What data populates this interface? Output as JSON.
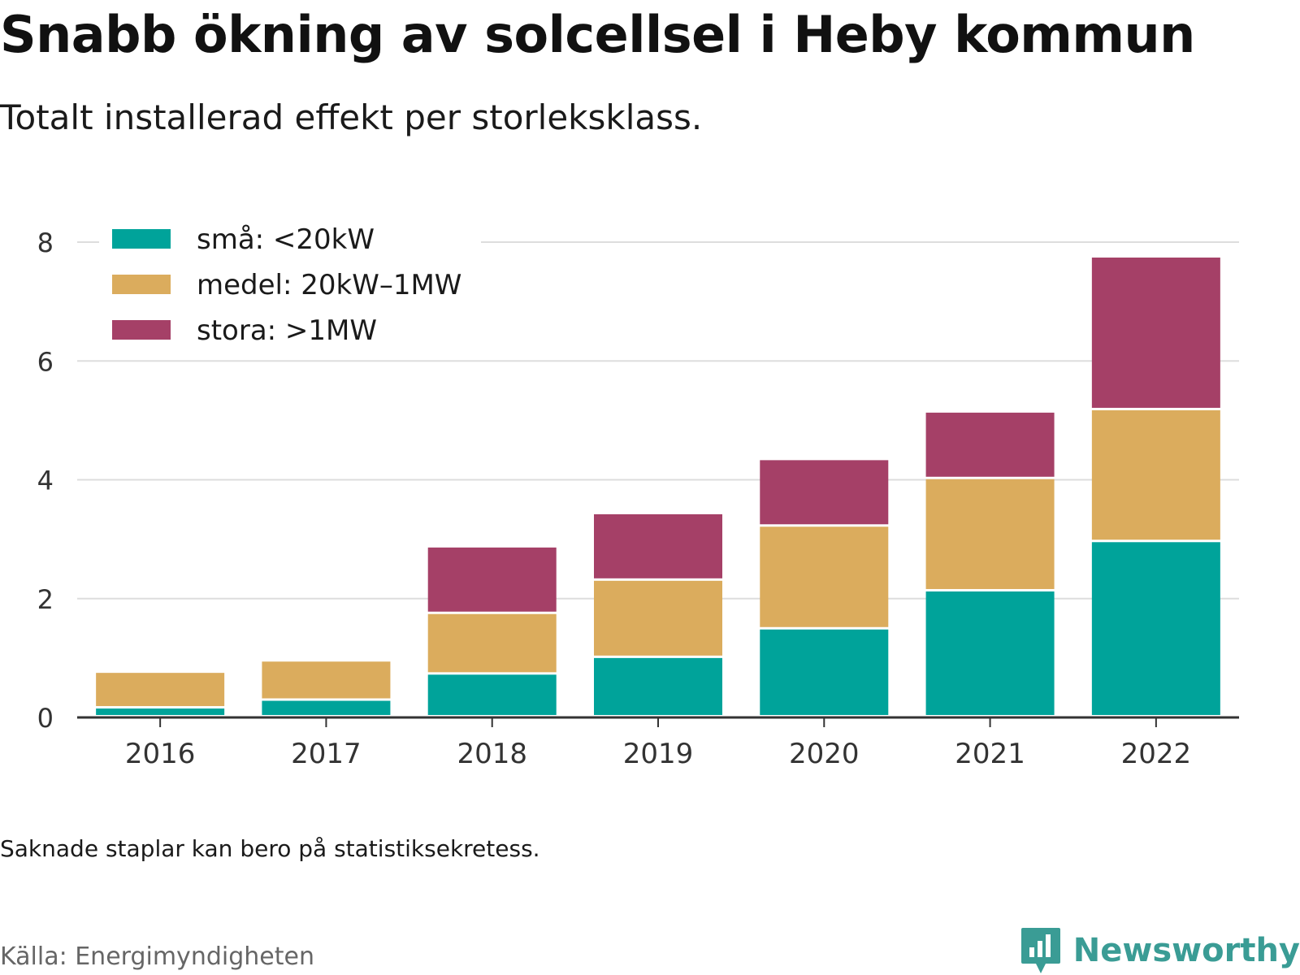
{
  "title": "Snabb ökning av solcellsel i Heby kommun",
  "subtitle": "Totalt installerad effekt per storleksklass.",
  "note": "Saknade staplar kan bero på statistiksekretess.",
  "source": "Källa: Energimyndigheten",
  "brand": {
    "name": "Newsworthy",
    "icon": "newsworthy-logo-icon",
    "color": "#3a9c95"
  },
  "chart_data": {
    "type": "bar",
    "stacked": true,
    "categories": [
      "2016",
      "2017",
      "2018",
      "2019",
      "2020",
      "2021",
      "2022"
    ],
    "series": [
      {
        "name": "små: <20kW",
        "color": "#00a39a",
        "values": [
          0.15,
          0.28,
          0.72,
          1.0,
          1.48,
          2.12,
          2.95
        ]
      },
      {
        "name": "medel: 20kW–1MW",
        "color": "#dbac5d",
        "values": [
          0.6,
          0.66,
          1.02,
          1.3,
          1.73,
          1.89,
          2.22
        ]
      },
      {
        "name": "stora: >1MW",
        "color": "#a54067",
        "values": [
          0,
          0,
          1.12,
          1.12,
          1.12,
          1.12,
          2.57
        ]
      }
    ],
    "yticks": [
      0,
      2,
      4,
      6,
      8
    ],
    "ylim": [
      0,
      8
    ],
    "grid": true,
    "legend_position": "top-left"
  }
}
